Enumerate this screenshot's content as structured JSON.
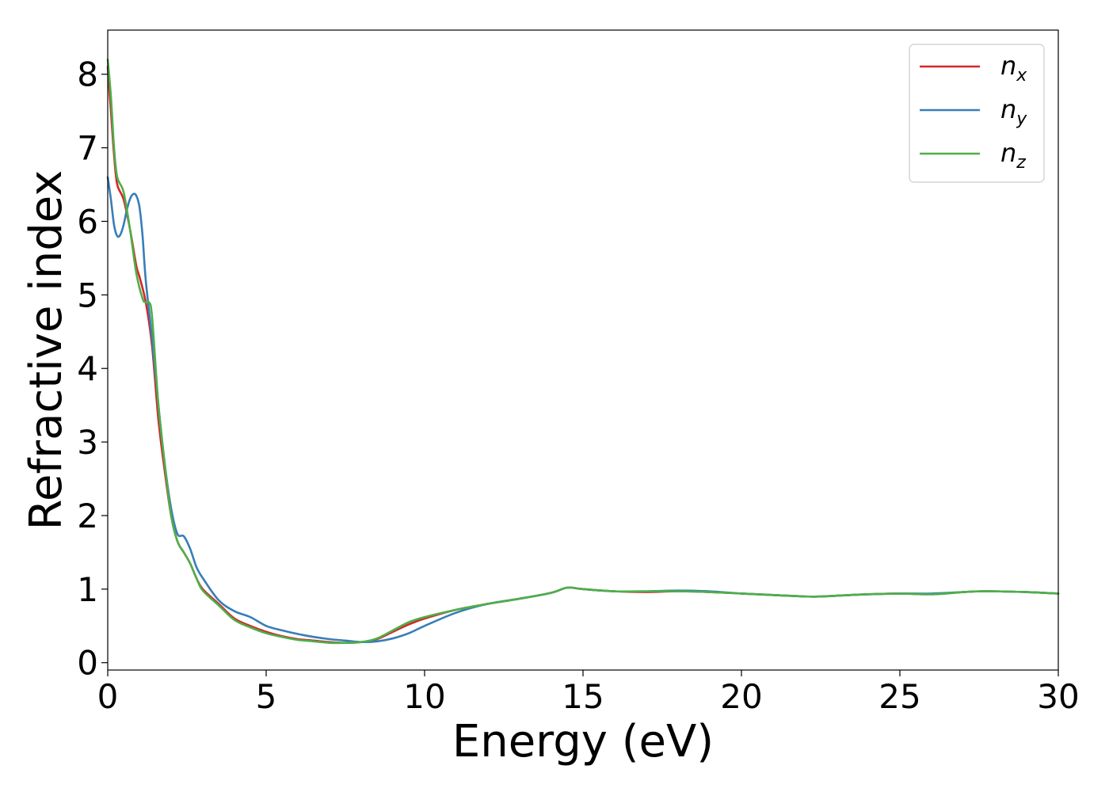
{
  "chart_data": {
    "type": "line",
    "xlabel": "Energy (eV)",
    "ylabel": "Refractive index",
    "xlim": [
      0,
      30
    ],
    "ylim": [
      -0.1,
      8.6
    ],
    "xticks": [
      0,
      5,
      10,
      15,
      20,
      25,
      30
    ],
    "yticks": [
      0,
      1,
      2,
      3,
      4,
      5,
      6,
      7,
      8
    ],
    "grid": false,
    "legend_position": "top-right",
    "series": [
      {
        "name": "n",
        "subscript": "x",
        "color": "#d62728",
        "x": [
          0,
          0.1,
          0.2,
          0.3,
          0.5,
          0.7,
          0.9,
          1.0,
          1.2,
          1.4,
          1.6,
          1.8,
          2.0,
          2.2,
          2.4,
          2.6,
          2.8,
          3.0,
          3.5,
          4.0,
          4.5,
          5.0,
          5.5,
          6.0,
          6.5,
          7.0,
          7.5,
          8.0,
          8.5,
          9.0,
          9.5,
          10.0,
          11.0,
          12.0,
          13.0,
          14.0,
          14.5,
          15.0,
          16.0,
          17.0,
          18.0,
          19.0,
          20.0,
          21.0,
          22.0,
          22.5,
          23.0,
          24.0,
          25.0,
          26.0,
          27.0,
          27.5,
          28.0,
          29.0,
          30.0
        ],
        "y": [
          8.1,
          7.5,
          6.9,
          6.5,
          6.3,
          5.9,
          5.4,
          5.25,
          4.9,
          4.3,
          3.3,
          2.6,
          2.0,
          1.65,
          1.5,
          1.35,
          1.15,
          1.0,
          0.8,
          0.6,
          0.5,
          0.42,
          0.36,
          0.32,
          0.3,
          0.28,
          0.27,
          0.28,
          0.32,
          0.42,
          0.52,
          0.6,
          0.72,
          0.8,
          0.87,
          0.95,
          1.02,
          1.0,
          0.97,
          0.96,
          0.97,
          0.96,
          0.94,
          0.92,
          0.9,
          0.9,
          0.91,
          0.93,
          0.94,
          0.93,
          0.96,
          0.97,
          0.97,
          0.96,
          0.94
        ]
      },
      {
        "name": "n",
        "subscript": "y",
        "color": "#377eb8",
        "x": [
          0,
          0.1,
          0.2,
          0.3,
          0.4,
          0.5,
          0.6,
          0.7,
          0.8,
          0.9,
          1.0,
          1.1,
          1.2,
          1.4,
          1.6,
          1.8,
          2.0,
          2.2,
          2.4,
          2.6,
          2.8,
          3.0,
          3.5,
          4.0,
          4.5,
          5.0,
          5.5,
          6.0,
          6.5,
          7.0,
          7.5,
          8.0,
          8.5,
          9.0,
          9.5,
          10.0,
          11.0,
          12.0,
          13.0,
          14.0,
          14.5,
          15.0,
          16.0,
          17.0,
          18.0,
          19.0,
          20.0,
          21.0,
          22.0,
          22.5,
          23.0,
          24.0,
          25.0,
          26.0,
          27.0,
          27.5,
          28.0,
          29.0,
          30.0
        ],
        "y": [
          6.6,
          6.3,
          5.95,
          5.8,
          5.82,
          5.95,
          6.15,
          6.3,
          6.37,
          6.35,
          6.2,
          5.8,
          5.2,
          4.4,
          3.5,
          2.7,
          2.1,
          1.75,
          1.72,
          1.55,
          1.3,
          1.15,
          0.85,
          0.7,
          0.62,
          0.5,
          0.44,
          0.39,
          0.35,
          0.32,
          0.3,
          0.28,
          0.29,
          0.33,
          0.4,
          0.5,
          0.68,
          0.8,
          0.87,
          0.95,
          1.02,
          1.0,
          0.97,
          0.97,
          0.98,
          0.97,
          0.94,
          0.92,
          0.9,
          0.9,
          0.91,
          0.93,
          0.94,
          0.94,
          0.96,
          0.97,
          0.97,
          0.96,
          0.94
        ]
      },
      {
        "name": "n",
        "subscript": "z",
        "color": "#4daf4a",
        "x": [
          0,
          0.1,
          0.2,
          0.3,
          0.5,
          0.7,
          0.9,
          1.1,
          1.2,
          1.3,
          1.4,
          1.6,
          1.8,
          2.0,
          2.2,
          2.4,
          2.6,
          2.8,
          3.0,
          3.5,
          4.0,
          4.5,
          5.0,
          5.5,
          6.0,
          6.5,
          7.0,
          7.5,
          8.0,
          8.5,
          9.0,
          9.5,
          10.0,
          11.0,
          12.0,
          13.0,
          14.0,
          14.5,
          15.0,
          16.0,
          17.0,
          18.0,
          19.0,
          20.0,
          21.0,
          22.0,
          22.5,
          23.0,
          24.0,
          25.0,
          26.0,
          27.0,
          27.5,
          28.0,
          29.0,
          30.0
        ],
        "y": [
          8.2,
          7.7,
          7.0,
          6.6,
          6.4,
          5.9,
          5.3,
          4.95,
          4.9,
          4.9,
          4.7,
          3.5,
          2.7,
          2.0,
          1.65,
          1.5,
          1.35,
          1.15,
          0.98,
          0.78,
          0.58,
          0.48,
          0.4,
          0.35,
          0.31,
          0.29,
          0.27,
          0.27,
          0.28,
          0.33,
          0.44,
          0.55,
          0.62,
          0.72,
          0.8,
          0.87,
          0.95,
          1.02,
          1.0,
          0.97,
          0.97,
          0.97,
          0.96,
          0.94,
          0.92,
          0.9,
          0.9,
          0.91,
          0.93,
          0.94,
          0.93,
          0.96,
          0.97,
          0.97,
          0.96,
          0.94
        ]
      }
    ]
  }
}
